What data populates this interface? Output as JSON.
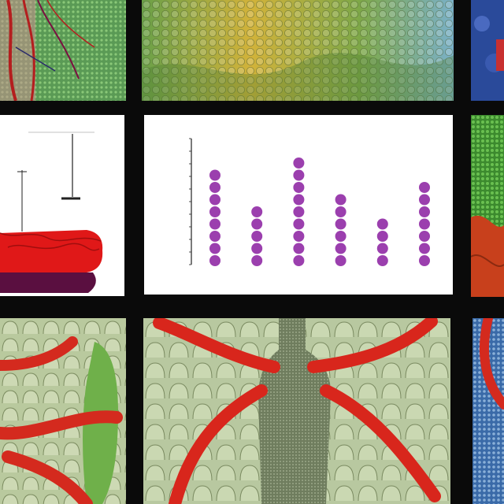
{
  "panels": {
    "top_left": {
      "kind": "tissue-vessels",
      "colors": {
        "bg": "#5a9a55",
        "vessel": "#b41e1e"
      }
    },
    "top_middle": {
      "kind": "scaled-texture",
      "colors": {
        "yellow": "#d2b23a",
        "green": "#6aa048",
        "blue": "#7ab0c8"
      }
    },
    "top_right": {
      "kind": "blue-texture",
      "colors": {
        "bg": "#2a4a9a",
        "accent": "#c83030"
      }
    },
    "mid_left": {
      "kind": "probe-diagram",
      "header": "",
      "colors": {
        "tissue": "#e01818",
        "base": "#5a0f40"
      }
    },
    "mid_middle": {
      "kind": "dot-chart",
      "title": "",
      "caption": ""
    },
    "mid_right": {
      "kind": "green-red-texture",
      "colors": {
        "green": "#3c8a2e",
        "red": "#c8401c"
      }
    },
    "bottom_left": {
      "kind": "villi-vessels",
      "colors": {
        "bg": "#b9c99e",
        "vessel": "#d42a1e",
        "green": "#6fb04a"
      }
    },
    "bottom_middle": {
      "kind": "central-trunk-vessels",
      "colors": {
        "bg": "#b8c8a0",
        "trunk": "#6f7d5e",
        "vessel": "#d8261c"
      }
    },
    "bottom_right": {
      "kind": "blue-vessel",
      "colors": {
        "bg": "#3a6aa8",
        "vessel": "#d42a1e"
      }
    }
  },
  "caption_strip": {
    "text": ""
  },
  "chart_data": {
    "type": "scatter",
    "title": "",
    "xlabel": "",
    "ylabel": "",
    "categories": [
      "",
      "",
      "",
      "",
      "",
      ""
    ],
    "values": [
      8,
      5,
      9,
      6,
      4,
      7
    ],
    "ylim": [
      0,
      10
    ],
    "grid": false,
    "marker_color": "#9b3fae"
  }
}
